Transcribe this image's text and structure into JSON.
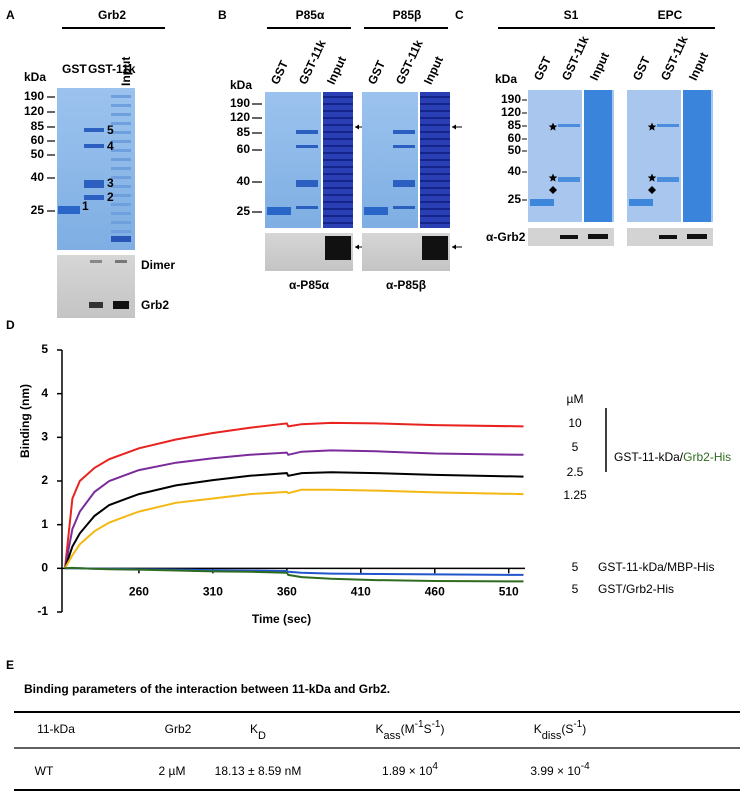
{
  "panels": {
    "A": {
      "letter": "A",
      "title": "Grb2",
      "lanes": [
        "GST",
        "GST-11k",
        "Input"
      ],
      "mw_unit": "kDa",
      "markers": [
        "190",
        "120",
        "85",
        "60",
        "50",
        "40",
        "25"
      ],
      "band_labels": [
        "1",
        "2",
        "3",
        "4",
        "5"
      ],
      "blot_labels": [
        "Dimer",
        "Grb2"
      ]
    },
    "B": {
      "letter": "B",
      "groups": [
        "P85α",
        "P85β"
      ],
      "lanes": [
        "GST",
        "GST-11k",
        "Input"
      ],
      "mw_unit": "kDa",
      "markers": [
        "190",
        "120",
        "85",
        "60",
        "40",
        "25"
      ],
      "blot_labels": [
        "α-P85α",
        "α-P85β"
      ]
    },
    "C": {
      "letter": "C",
      "groups": [
        "S1",
        "EPC"
      ],
      "lanes": [
        "GST",
        "GST-11k",
        "Input"
      ],
      "mw_unit": "kDa",
      "markers": [
        "190",
        "120",
        "85",
        "60",
        "50",
        "40",
        "25"
      ],
      "blot_label": "α-Grb2"
    }
  },
  "chart_data": {
    "type": "line",
    "panel_letter": "D",
    "xlabel": "Time (sec)",
    "ylabel": "Binding (nm)",
    "x": [
      210,
      215,
      220,
      230,
      240,
      260,
      285,
      310,
      335,
      360,
      361,
      370,
      390,
      420,
      460,
      520
    ],
    "xlim": [
      208,
      521
    ],
    "xticks": [
      260,
      310,
      360,
      410,
      460,
      510
    ],
    "ylim": [
      -1,
      5
    ],
    "yticks": [
      -1,
      0,
      1,
      2,
      3,
      4,
      5
    ],
    "unit_label": "µM",
    "group_label": [
      "GST-11-kDa/",
      "Grb2-His"
    ],
    "group_label_colors": [
      "#000000",
      "#2e6b1f"
    ],
    "series": [
      {
        "label": "10",
        "color": "#e8231f",
        "values": [
          0,
          1.6,
          2.0,
          2.3,
          2.5,
          2.75,
          2.95,
          3.1,
          3.22,
          3.32,
          3.25,
          3.3,
          3.33,
          3.32,
          3.28,
          3.25
        ]
      },
      {
        "label": "5",
        "color": "#7a2c9a",
        "values": [
          0,
          0.9,
          1.3,
          1.75,
          2.0,
          2.25,
          2.42,
          2.52,
          2.6,
          2.65,
          2.6,
          2.67,
          2.7,
          2.68,
          2.63,
          2.6
        ]
      },
      {
        "label": "2.5",
        "color": "#000000",
        "values": [
          0,
          0.5,
          0.8,
          1.2,
          1.45,
          1.7,
          1.9,
          2.02,
          2.12,
          2.18,
          2.12,
          2.18,
          2.2,
          2.18,
          2.14,
          2.1
        ]
      },
      {
        "label": "1.25",
        "color": "#f3b812",
        "values": [
          0,
          0.3,
          0.55,
          0.85,
          1.05,
          1.3,
          1.5,
          1.6,
          1.7,
          1.75,
          1.72,
          1.8,
          1.8,
          1.78,
          1.74,
          1.7
        ]
      },
      {
        "label": "5",
        "name": "GST-11-kDa/MBP-His",
        "color": "#2255cc",
        "values": [
          0,
          0,
          0,
          -0.01,
          -0.01,
          -0.02,
          -0.03,
          -0.04,
          -0.05,
          -0.06,
          -0.08,
          -0.1,
          -0.12,
          -0.13,
          -0.14,
          -0.15
        ]
      },
      {
        "label": "5",
        "name": "GST/Grb2-His",
        "color": "#2e6b1f",
        "values": [
          0,
          0.01,
          0,
          -0.01,
          -0.02,
          -0.03,
          -0.05,
          -0.07,
          -0.08,
          -0.1,
          -0.15,
          -0.2,
          -0.24,
          -0.27,
          -0.29,
          -0.3
        ]
      }
    ]
  },
  "table": {
    "letter": "E",
    "title": "Binding parameters of the interaction between 11-kDa and Grb2.",
    "headers": [
      [
        {
          "text": "11-kDa"
        }
      ],
      [
        {
          "text": "Grb2"
        }
      ],
      [
        {
          "text": "K"
        },
        {
          "text": "D",
          "pos": "sub"
        }
      ],
      [
        {
          "text": "K"
        },
        {
          "text": "ass",
          "pos": "sub"
        },
        {
          "text": "(M"
        },
        {
          "text": "-1",
          "pos": "sup"
        },
        {
          "text": "S"
        },
        {
          "text": "-1",
          "pos": "sup"
        },
        {
          "text": ")"
        }
      ],
      [
        {
          "text": "K"
        },
        {
          "text": "diss",
          "pos": "sub"
        },
        {
          "text": "(S"
        },
        {
          "text": "-1",
          "pos": "sup"
        },
        {
          "text": ")"
        }
      ]
    ],
    "rows": [
      [
        [
          {
            "text": "WT"
          }
        ],
        [
          {
            "text": "2 µM"
          }
        ],
        [
          {
            "text": "18.13 ± 8.59 nM"
          }
        ],
        [
          {
            "text": "1.89 × 10"
          },
          {
            "text": "4",
            "pos": "sup"
          }
        ],
        [
          {
            "text": "3.99 × 10"
          },
          {
            "text": "-4",
            "pos": "sup"
          }
        ]
      ]
    ]
  }
}
